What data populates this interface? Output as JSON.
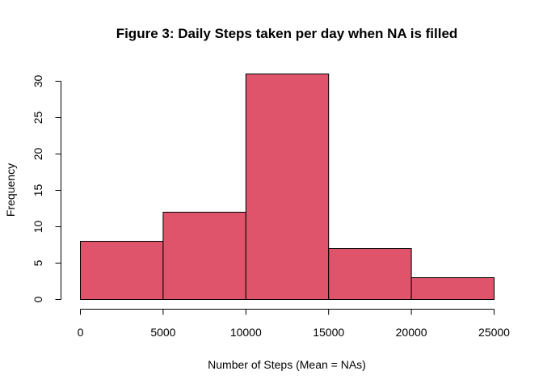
{
  "chart_data": {
    "type": "bar",
    "subtype": "histogram",
    "title": "Figure 3: Daily Steps taken per day when NA is filled",
    "xlabel": "Number of Steps (Mean = NAs)",
    "ylabel": "Frequency",
    "bins": [
      {
        "start": 0,
        "end": 5000,
        "count": 8
      },
      {
        "start": 5000,
        "end": 10000,
        "count": 12
      },
      {
        "start": 10000,
        "end": 15000,
        "count": 31
      },
      {
        "start": 15000,
        "end": 20000,
        "count": 7
      },
      {
        "start": 20000,
        "end": 25000,
        "count": 3
      }
    ],
    "xlim": [
      0,
      25000
    ],
    "ylim": [
      0,
      30
    ],
    "x_ticks": [
      0,
      5000,
      10000,
      15000,
      20000,
      25000
    ],
    "y_ticks": [
      0,
      5,
      10,
      15,
      20,
      25,
      30
    ],
    "bar_color": "#DF536B",
    "grid": false,
    "legend": "none"
  }
}
